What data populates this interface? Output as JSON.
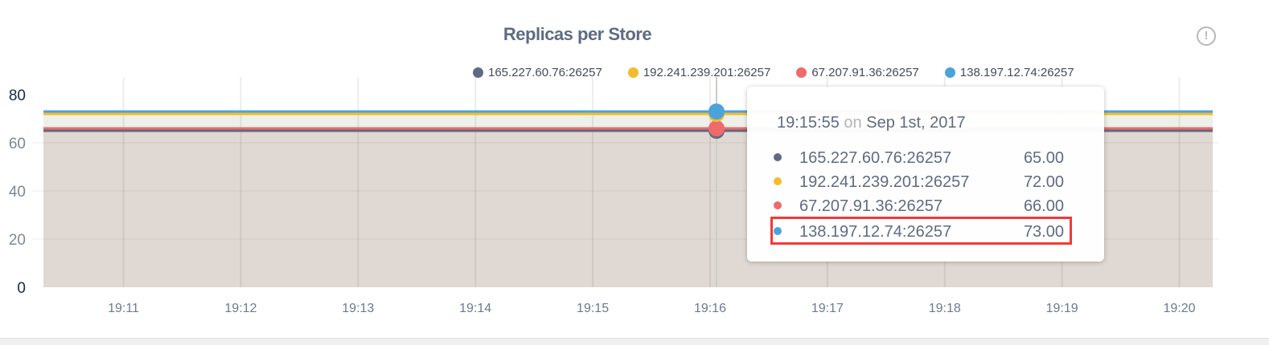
{
  "chart_data": {
    "type": "area",
    "title": "Replicas per Store",
    "ylim": [
      0,
      80
    ],
    "yticks": [
      "0",
      "20",
      "40",
      "60",
      "80"
    ],
    "x_range": [
      "19:10:24",
      "19:20:22"
    ],
    "xticks": [
      "19:11",
      "19:12",
      "19:13",
      "19:14",
      "19:15",
      "19:16",
      "19:17",
      "19:18",
      "19:19",
      "19:20"
    ],
    "grid": true,
    "legend_position": "top",
    "series": [
      {
        "name": "165.227.60.76:26257",
        "color": "#5f6b84",
        "value": 65
      },
      {
        "name": "192.241.239.201:26257",
        "color": "#f2bd2c",
        "value": 72
      },
      {
        "name": "67.207.91.36:26257",
        "color": "#ef6a6a",
        "value": 66
      },
      {
        "name": "138.197.12.74:26257",
        "color": "#4ca3d9",
        "value": 73
      }
    ],
    "hover_x": "19:16:05"
  },
  "tooltip": {
    "time": "19:15:55",
    "on": "on",
    "date": "Sep 1st, 2017",
    "rows": [
      {
        "label": "165.227.60.76:26257",
        "value": "65.00"
      },
      {
        "label": "192.241.239.201:26257",
        "value": "72.00"
      },
      {
        "label": "67.207.91.36:26257",
        "value": "66.00"
      },
      {
        "label": "138.197.12.74:26257",
        "value": "73.00"
      }
    ],
    "highlighted_row": 3
  },
  "info_icon": "exclamation-circle-icon",
  "info_glyph": "!"
}
